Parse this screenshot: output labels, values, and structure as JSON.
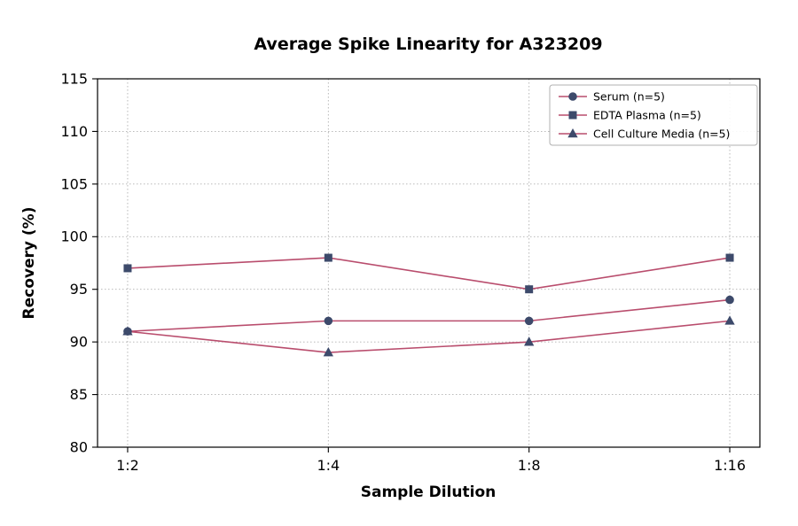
{
  "chart_data": {
    "type": "line",
    "title": "Average Spike Linearity for A323209",
    "xlabel": "Sample Dilution",
    "ylabel": "Recovery (%)",
    "categories": [
      "1:2",
      "1:4",
      "1:8",
      "1:16"
    ],
    "series": [
      {
        "name": "Serum (n=5)",
        "marker": "circle",
        "values": [
          91,
          92,
          92,
          94
        ]
      },
      {
        "name": "EDTA Plasma (n=5)",
        "marker": "square",
        "values": [
          97,
          98,
          95,
          98
        ]
      },
      {
        "name": "Cell Culture Media (n=5)",
        "marker": "triangle",
        "values": [
          91,
          89,
          90,
          92
        ]
      }
    ],
    "ylim": [
      80,
      115
    ],
    "ytick_step": 5,
    "grid": true,
    "legend_position": "upper right",
    "colors": {
      "line": "#b94d6d",
      "marker": "#3d4a6b",
      "grid": "#b0b0b0",
      "text": "#000000",
      "background": "#ffffff"
    }
  }
}
